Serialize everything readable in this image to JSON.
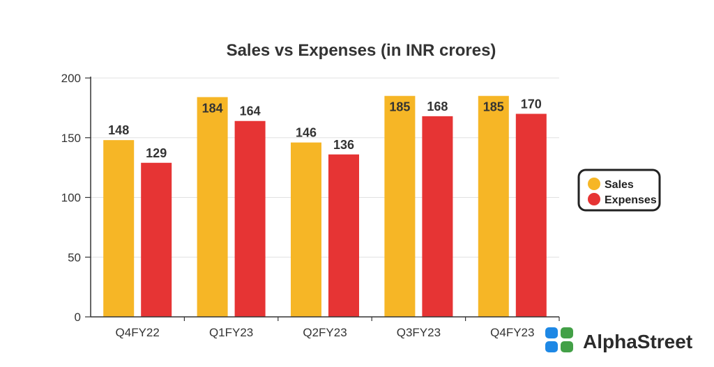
{
  "chart_data": {
    "type": "bar",
    "title": "Sales vs Expenses (in INR crores)",
    "xlabel": "",
    "ylabel": "",
    "categories": [
      "Q4FY22",
      "Q1FY23",
      "Q2FY23",
      "Q3FY23",
      "Q4FY23"
    ],
    "series": [
      {
        "name": "Sales",
        "values": [
          148,
          184,
          146,
          185,
          185
        ],
        "color": "#F6B626"
      },
      {
        "name": "Expenses",
        "values": [
          129,
          164,
          136,
          168,
          170
        ],
        "color": "#E63434"
      }
    ],
    "ylim": [
      0,
      200
    ],
    "yticks": [
      0,
      50,
      100,
      150,
      200
    ],
    "grid": true,
    "legend_position": "right"
  },
  "brand": {
    "name": "AlphaStreet",
    "logo_icon": "alphastreet-logo-icon",
    "colors": [
      "#1E88E5",
      "#43A047"
    ]
  }
}
